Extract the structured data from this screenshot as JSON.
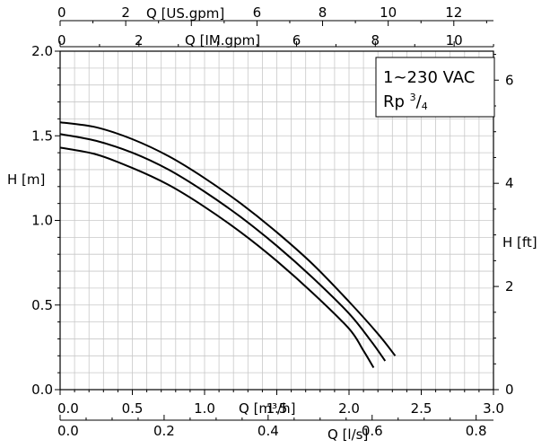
{
  "chart_data": {
    "type": "line",
    "title": "",
    "annotation": {
      "line1": "1~230 VAC",
      "line2_base": "Rp ",
      "line2_num": "3",
      "line2_den": "4"
    },
    "xlabel": "Q [m³/h]",
    "ylabel": "H [m]",
    "xlim": [
      0,
      3.0
    ],
    "ylim": [
      0,
      2.0
    ],
    "grid": true,
    "x_ticks": [
      "0.0",
      "0.5",
      "1.0",
      "1.5",
      "2.0",
      "2.5",
      "3.0"
    ],
    "y_ticks": [
      "0.0",
      "0.5",
      "1.0",
      "1.5",
      "2.0"
    ],
    "secondary_axes": {
      "top_us": {
        "label": "Q [US.gpm]",
        "ticks": [
          "0",
          "2",
          "6",
          "8",
          "10",
          "12"
        ],
        "tick_values": [
          0,
          2,
          6,
          8,
          10,
          12
        ]
      },
      "top_im": {
        "label": "Q [IM.gpm]",
        "ticks": [
          "0",
          "2",
          "6",
          "8",
          "10"
        ],
        "tick_values": [
          0,
          2,
          6,
          8,
          10
        ]
      },
      "bottom_ls": {
        "label": "Q [l/s]",
        "ticks": [
          "0.0",
          "0.2",
          "0.4",
          "0.6",
          "0.8"
        ],
        "tick_values": [
          0.0,
          0.2,
          0.4,
          0.6,
          0.8
        ]
      },
      "right_ft": {
        "label": "H [ft]",
        "ticks": [
          "0",
          "2",
          "4",
          "6"
        ],
        "tick_values": [
          0,
          2,
          4,
          6
        ]
      }
    },
    "series": [
      {
        "x": [
          0.0,
          0.25,
          0.5,
          0.75,
          1.0,
          1.25,
          1.5,
          1.75,
          2.0,
          2.2,
          2.32
        ],
        "y": [
          1.58,
          1.55,
          1.48,
          1.38,
          1.25,
          1.1,
          0.93,
          0.74,
          0.52,
          0.33,
          0.2
        ]
      },
      {
        "x": [
          0.0,
          0.25,
          0.5,
          0.75,
          1.0,
          1.25,
          1.5,
          1.75,
          2.0,
          2.15,
          2.25
        ],
        "y": [
          1.51,
          1.47,
          1.4,
          1.3,
          1.17,
          1.02,
          0.85,
          0.66,
          0.45,
          0.29,
          0.17
        ]
      },
      {
        "x": [
          0.0,
          0.25,
          0.5,
          0.75,
          1.0,
          1.25,
          1.5,
          1.75,
          2.0,
          2.1,
          2.17
        ],
        "y": [
          1.43,
          1.39,
          1.31,
          1.21,
          1.08,
          0.93,
          0.76,
          0.57,
          0.36,
          0.23,
          0.13
        ]
      }
    ]
  }
}
